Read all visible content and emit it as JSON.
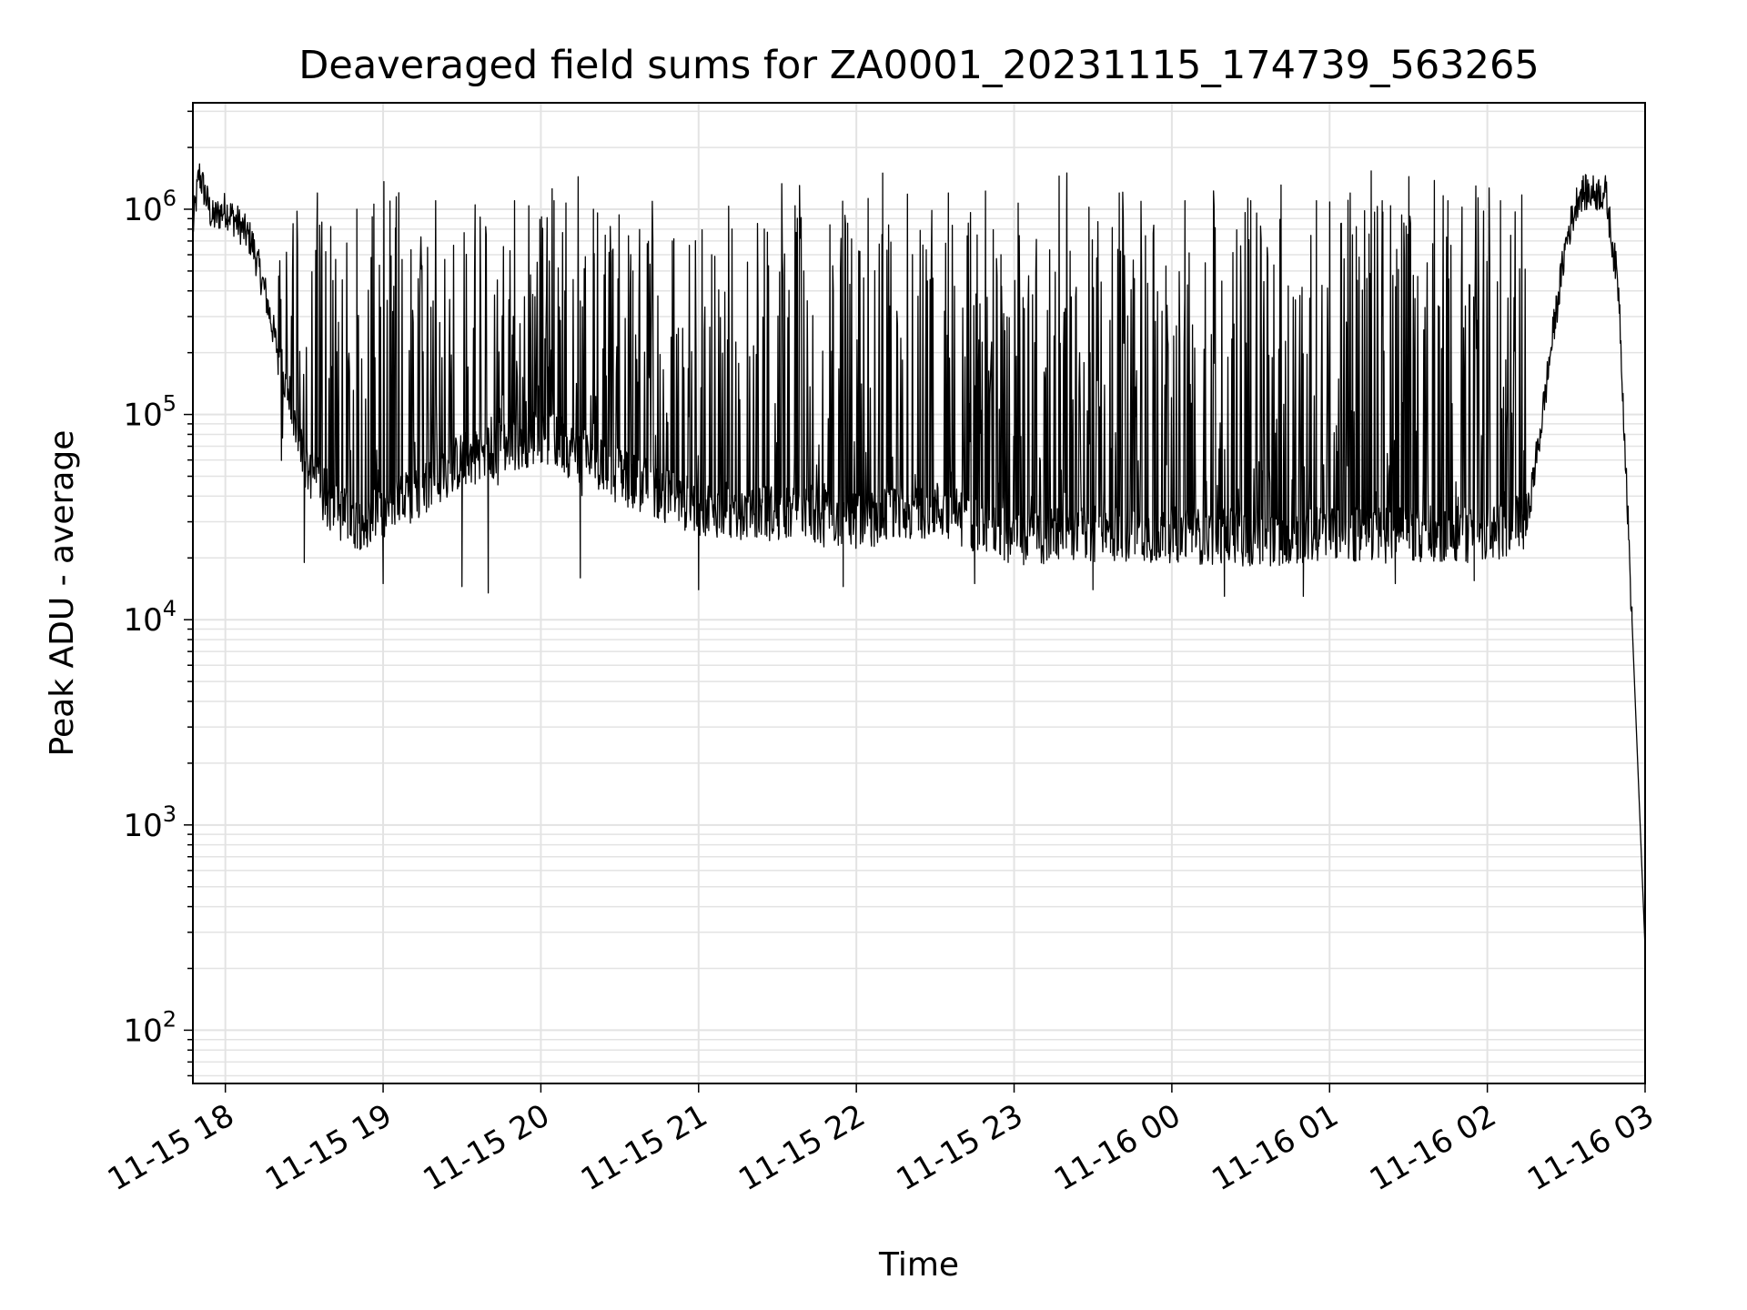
{
  "chart_data": {
    "type": "line",
    "title": "Deaveraged field sums for ZA0001_20231115_174739_563265",
    "xlabel": "Time",
    "ylabel": "Peak ADU - average",
    "yscale": "log",
    "ylim": [
      55,
      3300000
    ],
    "xlim": [
      "2023-11-15 17:47:39",
      "2023-11-16 03:00:00"
    ],
    "grid": true,
    "line_color": "#000000",
    "grid_color": "#e3e3e3",
    "x_ticks": [
      {
        "time": "2023-11-15 18:00",
        "label": "11-15 18"
      },
      {
        "time": "2023-11-15 19:00",
        "label": "11-15 19"
      },
      {
        "time": "2023-11-15 20:00",
        "label": "11-15 20"
      },
      {
        "time": "2023-11-15 21:00",
        "label": "11-15 21"
      },
      {
        "time": "2023-11-15 22:00",
        "label": "11-15 22"
      },
      {
        "time": "2023-11-15 23:00",
        "label": "11-15 23"
      },
      {
        "time": "2023-11-16 00:00",
        "label": "11-16 00"
      },
      {
        "time": "2023-11-16 01:00",
        "label": "11-16 01"
      },
      {
        "time": "2023-11-16 02:00",
        "label": "11-16 02"
      },
      {
        "time": "2023-11-16 03:00",
        "label": "11-16 03"
      }
    ],
    "y_ticks": [
      {
        "value": 100,
        "base": "10",
        "exponent": "2"
      },
      {
        "value": 1000,
        "base": "10",
        "exponent": "3"
      },
      {
        "value": 10000,
        "base": "10",
        "exponent": "4"
      },
      {
        "value": 100000,
        "base": "10",
        "exponent": "5"
      },
      {
        "value": 1000000,
        "base": "10",
        "exponent": "6"
      }
    ],
    "series": [
      {
        "points": [
          [
            "2023-11-15 17:47:39",
            800000
          ],
          [
            "2023-11-15 17:50",
            1500000
          ],
          [
            "2023-11-15 17:55",
            900000
          ],
          [
            "2023-11-15 18:00",
            1000000
          ],
          [
            "2023-11-15 18:05",
            850000
          ],
          [
            "2023-11-15 18:10",
            700000
          ],
          [
            "2023-11-15 18:15",
            400000
          ],
          [
            "2023-11-15 18:20",
            200000
          ],
          [
            "2023-11-15 18:25",
            100000
          ],
          [
            "2023-11-15 18:30",
            60000
          ],
          [
            "2023-11-15 18:40",
            35000
          ],
          [
            "2023-11-15 18:50",
            30000
          ],
          [
            "2023-11-15 19:00",
            32000
          ],
          [
            "2023-11-15 19:30",
            60000
          ],
          [
            "2023-11-15 20:00",
            80000
          ],
          [
            "2023-11-15 20:30",
            50000
          ],
          [
            "2023-11-15 21:00",
            35000
          ],
          [
            "2023-11-15 21:30",
            33000
          ],
          [
            "2023-11-15 22:00",
            30000
          ],
          [
            "2023-11-15 22:30",
            35000
          ],
          [
            "2023-11-15 23:00",
            25000
          ],
          [
            "2023-11-15 23:30",
            26000
          ],
          [
            "2023-11-16 00:00",
            26000
          ],
          [
            "2023-11-16 00:30",
            25000
          ],
          [
            "2023-11-16 01:00",
            26000
          ],
          [
            "2023-11-16 01:30",
            26000
          ],
          [
            "2023-11-16 02:00",
            26000
          ],
          [
            "2023-11-16 02:15",
            30000
          ],
          [
            "2023-11-16 02:20",
            80000
          ],
          [
            "2023-11-16 02:25",
            250000
          ],
          [
            "2023-11-16 02:30",
            700000
          ],
          [
            "2023-11-16 02:35",
            1200000
          ],
          [
            "2023-11-16 02:45",
            1200000
          ],
          [
            "2023-11-16 02:50",
            400000
          ],
          [
            "2023-11-16 02:55",
            10000
          ],
          [
            "2023-11-16 03:00",
            250
          ]
        ],
        "spikes_high": [
          [
            "2023-11-15 18:35",
            1200000
          ],
          [
            "2023-11-15 18:50",
            1000000
          ],
          [
            "2023-11-15 19:05",
            1150000
          ],
          [
            "2023-11-15 19:20",
            1100000
          ],
          [
            "2023-11-15 19:35",
            1050000
          ],
          [
            "2023-11-15 19:50",
            1100000
          ],
          [
            "2023-11-15 20:05",
            1100000
          ],
          [
            "2023-11-15 20:20",
            1000000
          ],
          [
            "2023-11-15 20:35",
            500000
          ],
          [
            "2023-11-15 20:50",
            700000
          ],
          [
            "2023-11-15 21:05",
            600000
          ],
          [
            "2023-11-15 21:25",
            800000
          ],
          [
            "2023-11-15 21:40",
            500000
          ],
          [
            "2023-11-15 22:10",
            1500000
          ],
          [
            "2023-11-15 22:35",
            1200000
          ],
          [
            "2023-11-15 22:55",
            600000
          ],
          [
            "2023-11-15 23:20",
            1000000
          ],
          [
            "2023-11-15 23:40",
            1200000
          ],
          [
            "2023-11-16 00:05",
            1100000
          ],
          [
            "2023-11-16 00:30",
            1100000
          ],
          [
            "2023-11-16 00:55",
            1100000
          ],
          [
            "2023-11-16 01:20",
            1100000
          ],
          [
            "2023-11-16 01:45",
            1100000
          ],
          [
            "2023-11-16 02:05",
            1100000
          ]
        ],
        "dips_low": [
          [
            "2023-11-15 18:30",
            19000
          ],
          [
            "2023-11-15 19:00",
            15000
          ],
          [
            "2023-11-15 19:30",
            14500
          ],
          [
            "2023-11-15 19:40",
            13500
          ],
          [
            "2023-11-15 20:15",
            16000
          ],
          [
            "2023-11-15 21:00",
            14000
          ],
          [
            "2023-11-15 21:55",
            14500
          ],
          [
            "2023-11-15 22:45",
            15000
          ],
          [
            "2023-11-15 23:30",
            14000
          ],
          [
            "2023-11-16 00:20",
            13000
          ],
          [
            "2023-11-16 00:50",
            13000
          ],
          [
            "2023-11-16 01:25",
            15000
          ],
          [
            "2023-11-16 01:55",
            15500
          ]
        ]
      }
    ]
  }
}
